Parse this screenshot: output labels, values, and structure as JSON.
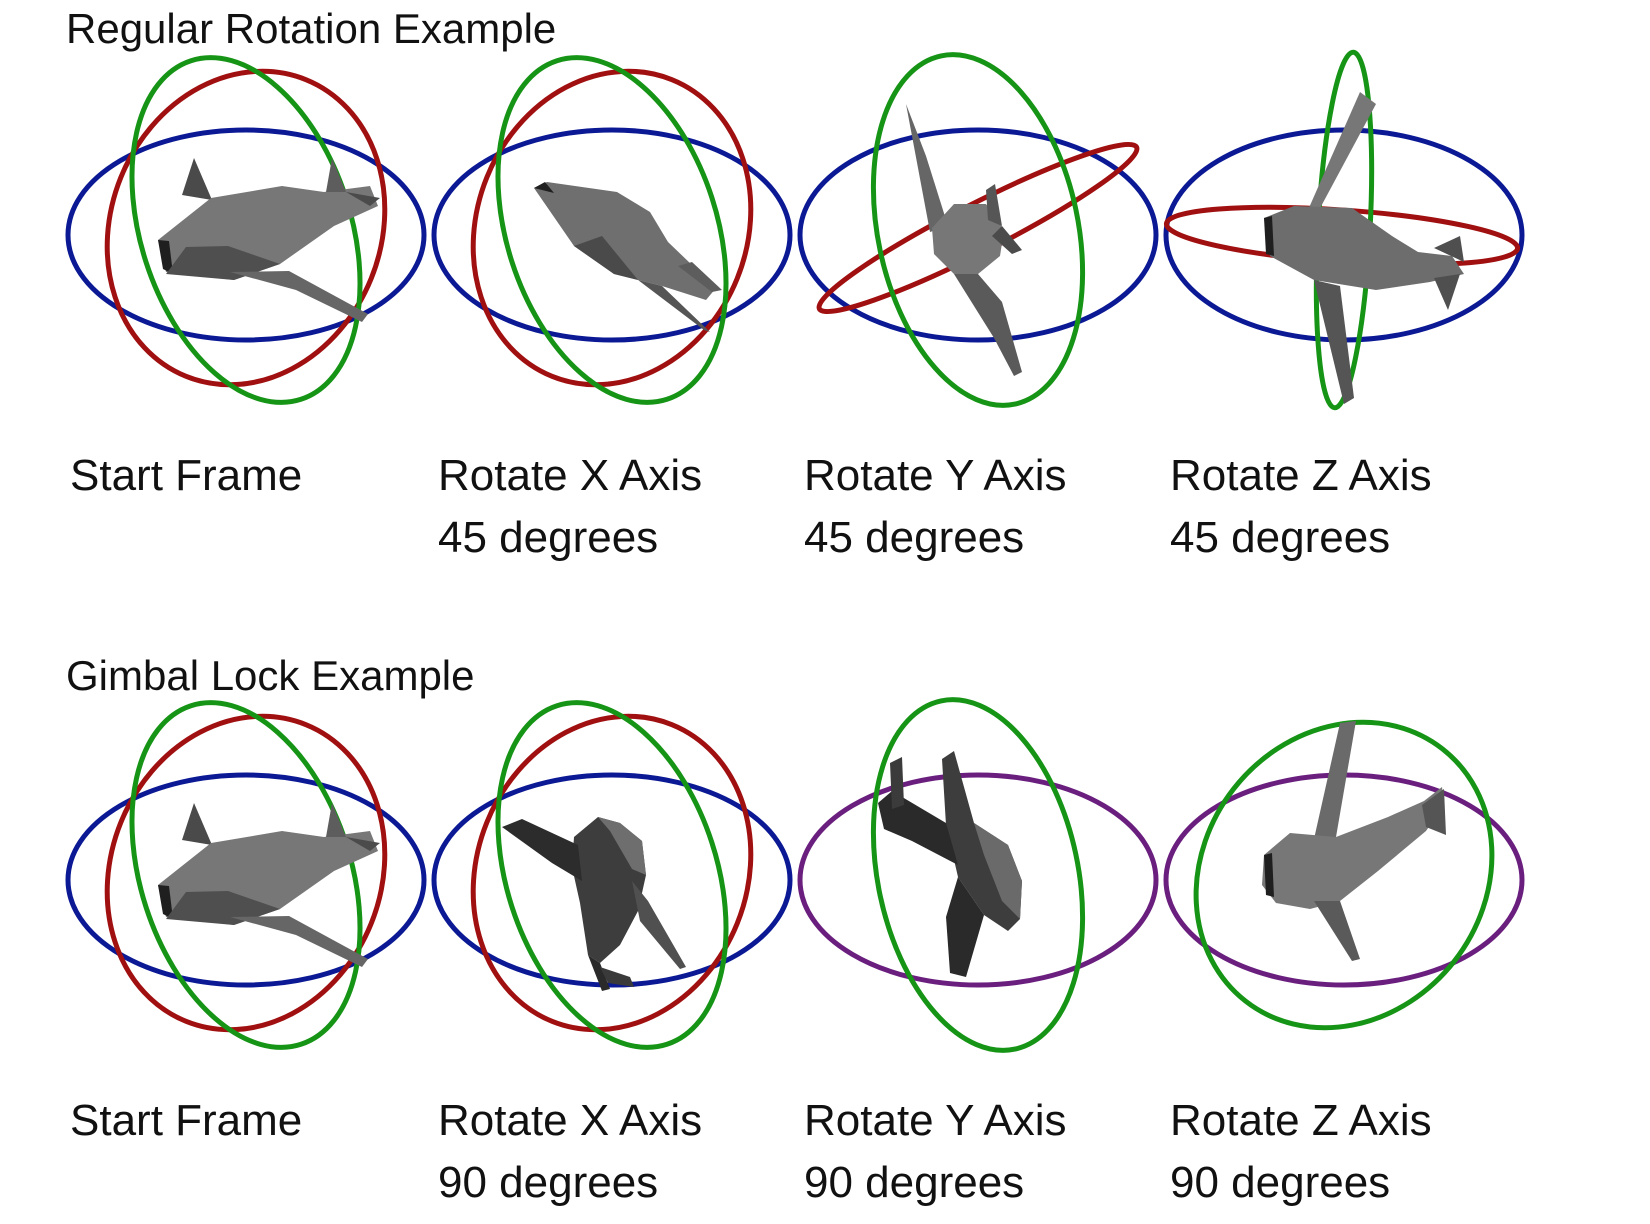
{
  "colors": {
    "x_ring": "#a11010",
    "y_ring": "#169416",
    "z_ring": "#0b1994",
    "merged_ring": "#6a1f7f",
    "plane_light": "#777777",
    "plane_dark": "#3d3d3d",
    "plane_shadow": "#1f1f1f"
  },
  "sections": [
    {
      "id": "regular",
      "title": "Regular Rotation Example",
      "frames": [
        {
          "line1": "Start Frame",
          "line2": ""
        },
        {
          "line1": "Rotate X Axis",
          "line2": "45 degrees"
        },
        {
          "line1": "Rotate Y Axis",
          "line2": "45 degrees"
        },
        {
          "line1": "Rotate Z Axis",
          "line2": "45 degrees"
        }
      ]
    },
    {
      "id": "gimbal",
      "title": "Gimbal Lock Example",
      "frames": [
        {
          "line1": "Start Frame",
          "line2": ""
        },
        {
          "line1": "Rotate X Axis",
          "line2": "90 degrees"
        },
        {
          "line1": "Rotate Y Axis",
          "line2": "90 degrees"
        },
        {
          "line1": "Rotate Z Axis",
          "line2": "90 degrees"
        }
      ]
    }
  ]
}
